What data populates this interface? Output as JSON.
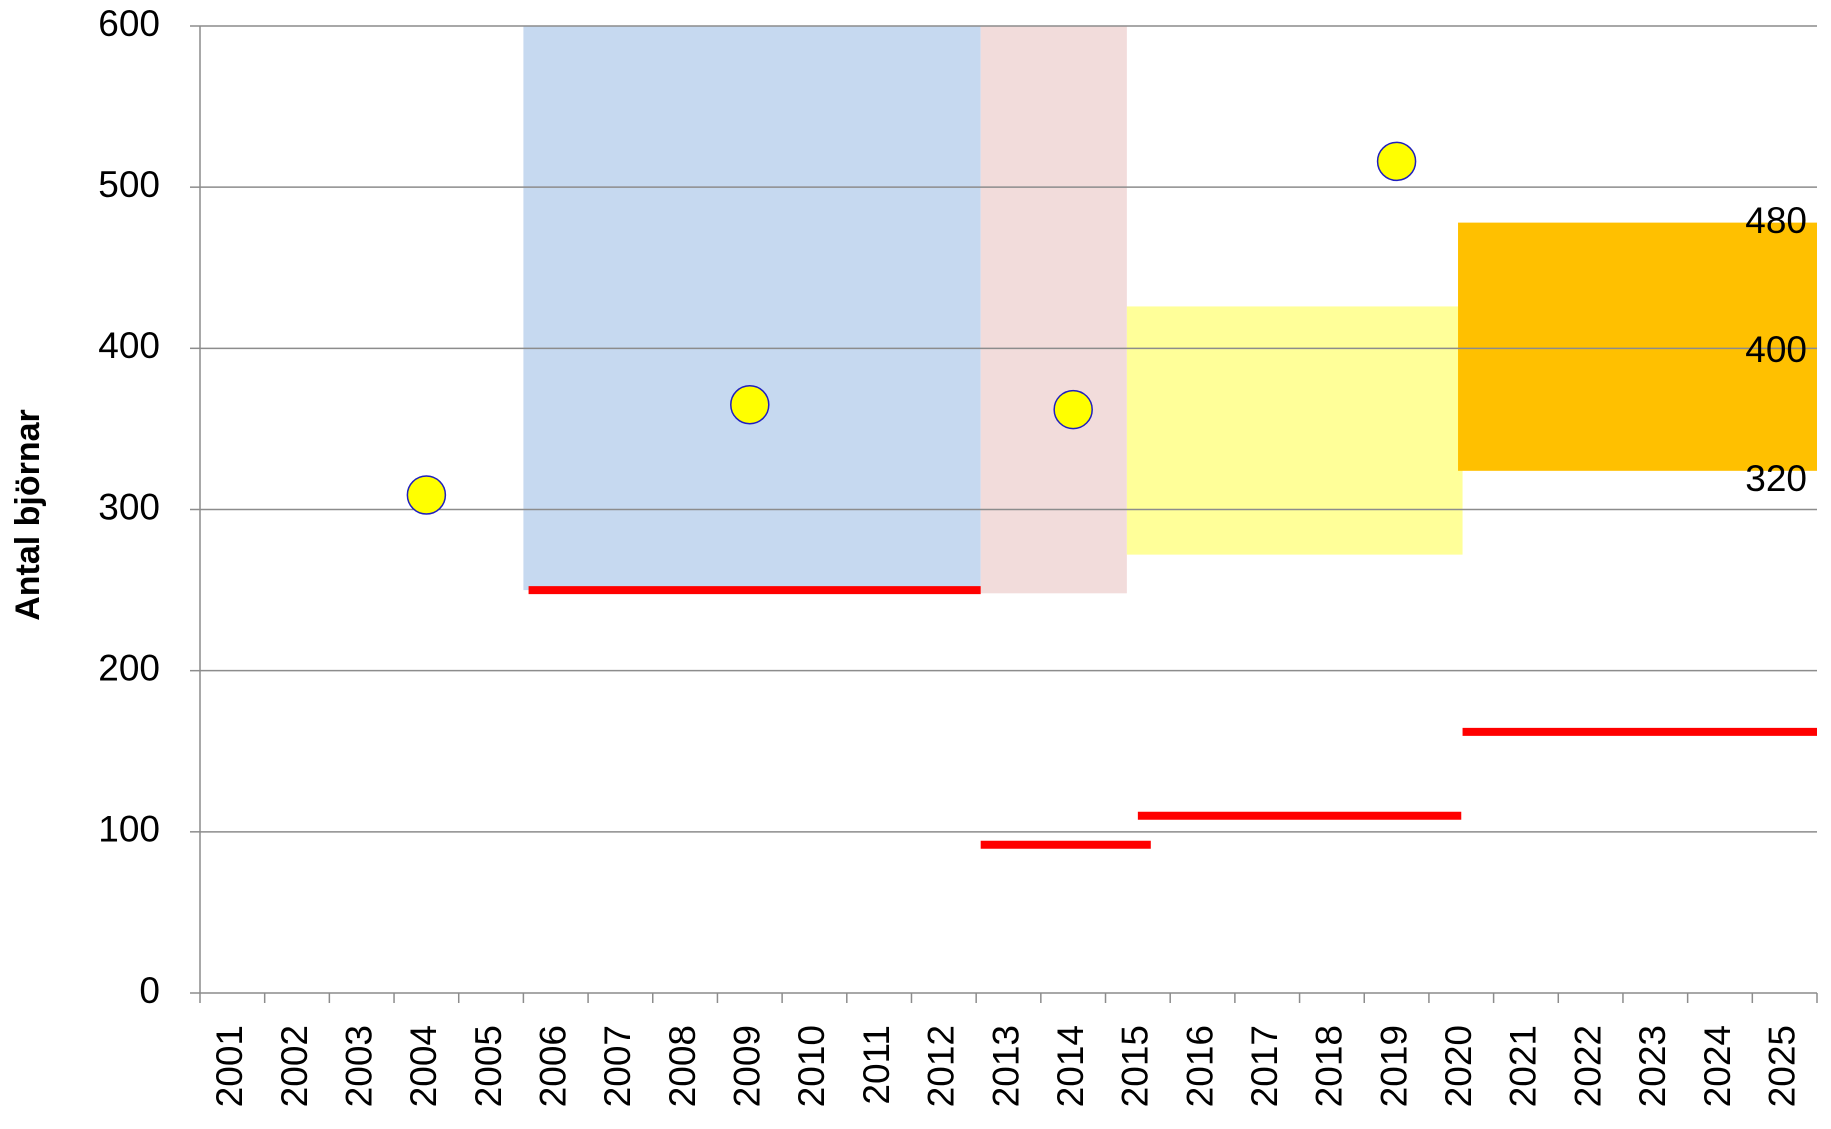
{
  "chart_data": {
    "type": "scatter",
    "y_label": "Antal björnar",
    "xlim": [
      2000.5,
      2025.5
    ],
    "xticks": [
      2001,
      2002,
      2003,
      2004,
      2005,
      2006,
      2007,
      2008,
      2009,
      2010,
      2011,
      2012,
      2013,
      2014,
      2015,
      2016,
      2017,
      2018,
      2019,
      2020,
      2021,
      2022,
      2023,
      2024,
      2025
    ],
    "ylim": [
      0,
      600
    ],
    "yticks": [
      0,
      100,
      200,
      300,
      400,
      500,
      600
    ],
    "grid": true,
    "bands": [
      {
        "x": [
          2005.5,
          2012.57
        ],
        "y": [
          250,
          600
        ],
        "color": "#c6d9f0"
      },
      {
        "x": [
          2012.57,
          2014.83
        ],
        "y": [
          248,
          600
        ],
        "color": "#f2dcdb"
      },
      {
        "x": [
          2014.83,
          2020.02
        ],
        "y": [
          272,
          426
        ],
        "color": "#ffff99"
      },
      {
        "x": [
          2019.95,
          2025.5
        ],
        "y": [
          324,
          478
        ],
        "color": "#ffc000",
        "labels": [
          480,
          400,
          320
        ]
      }
    ],
    "segments": {
      "color": "#ff0000",
      "items": [
        {
          "x": [
            2005.58,
            2012.57
          ],
          "value": 250
        },
        {
          "x": [
            2012.57,
            2015.2
          ],
          "value": 92
        },
        {
          "x": [
            2015.0,
            2020.0
          ],
          "value": 110
        },
        {
          "x": [
            2020.02,
            2025.5
          ],
          "value": 162
        }
      ]
    },
    "series": [
      {
        "x": [
          2004,
          2009,
          2014,
          2019
        ],
        "values": [
          309,
          365,
          362,
          516
        ],
        "color": "#ffff00",
        "edge": "#1f1fbf"
      }
    ]
  }
}
